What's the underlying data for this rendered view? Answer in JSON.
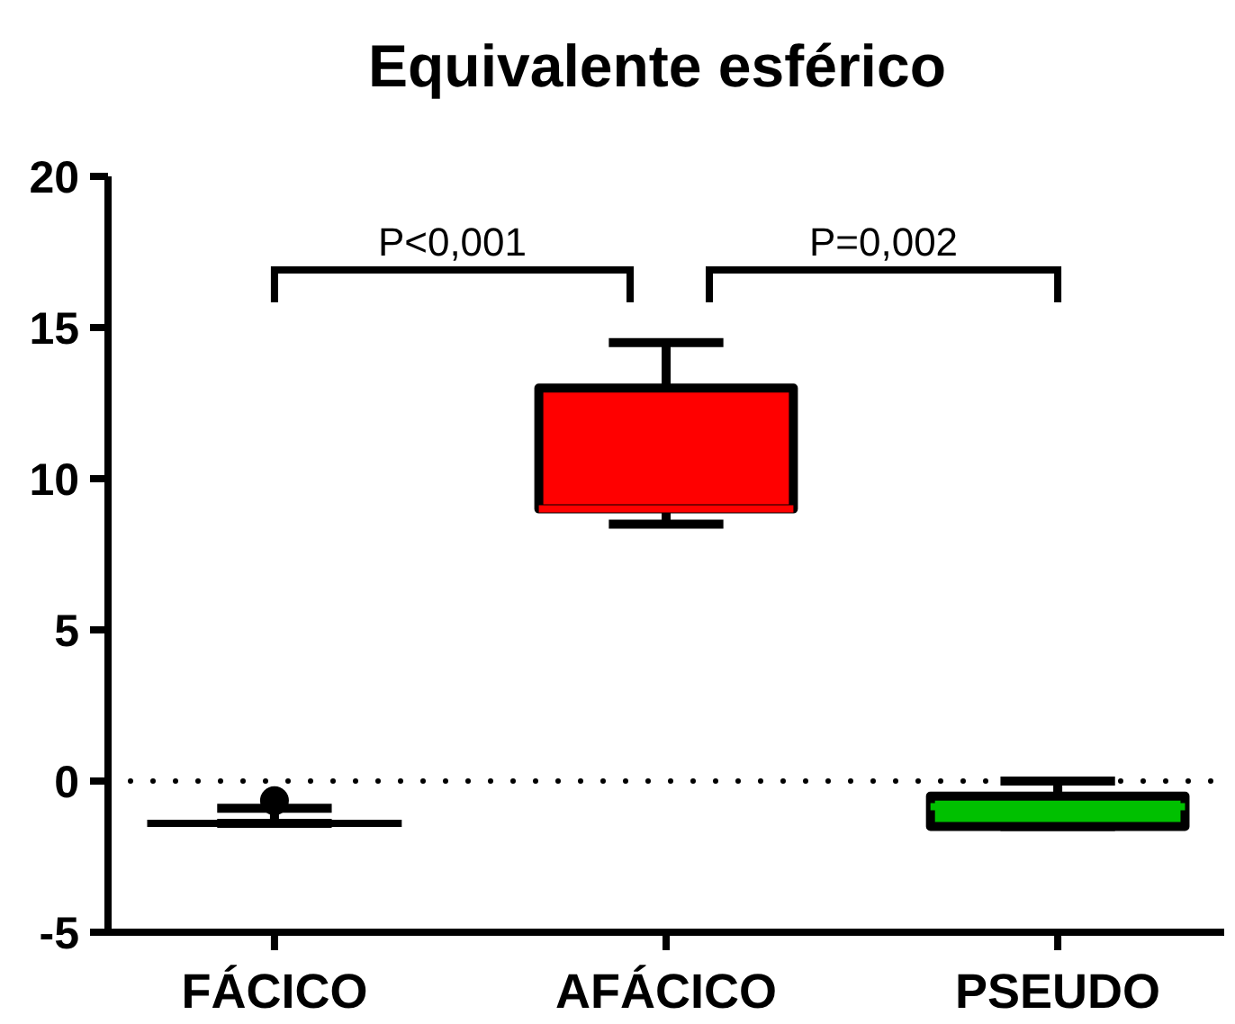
{
  "chart_data": {
    "type": "box",
    "title": "Equivalente esférico",
    "categories": [
      "FÁCICO",
      "AFÁCICO",
      "PSEUDO"
    ],
    "boxes": [
      {
        "low": -1.4,
        "q1": -1.4,
        "median": -1.4,
        "q3": -1.4,
        "high": -0.9,
        "outliers": [
          -0.65
        ]
      },
      {
        "low": 8.5,
        "q1": 9,
        "median": 9,
        "q3": 13,
        "high": 14.5
      },
      {
        "low": -1.5,
        "q1": -1.5,
        "median": -0.85,
        "q3": -0.5,
        "high": 0
      }
    ],
    "colors": [
      "#000000",
      "#ff0000",
      "#00c000"
    ],
    "ylim": [
      -5,
      20
    ],
    "yticks": [
      -5,
      0,
      5,
      10,
      15,
      20
    ],
    "grid": false,
    "ref_lines": [
      {
        "axis": "y",
        "value": 0,
        "line_style": "dotted",
        "color": "#000000"
      }
    ],
    "annotations": [
      "P<0,001",
      "P=0,002"
    ]
  }
}
